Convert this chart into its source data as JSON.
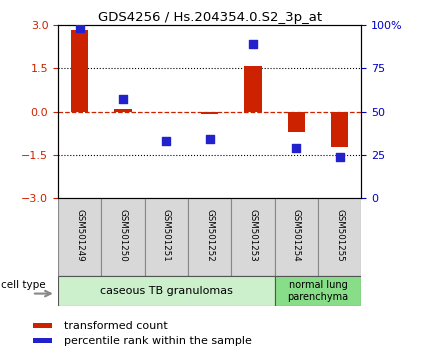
{
  "title": "GDS4256 / Hs.204354.0.S2_3p_at",
  "samples": [
    "GSM501249",
    "GSM501250",
    "GSM501251",
    "GSM501252",
    "GSM501253",
    "GSM501254",
    "GSM501255"
  ],
  "red_bars": [
    2.82,
    0.07,
    -0.03,
    -0.07,
    1.58,
    -0.72,
    -1.22
  ],
  "blue_dots": [
    98.0,
    57.0,
    33.0,
    34.0,
    89.0,
    29.0,
    24.0
  ],
  "ylim_left": [
    -3,
    3
  ],
  "ylim_right": [
    0,
    100
  ],
  "left_yticks": [
    -3,
    -1.5,
    0,
    1.5,
    3
  ],
  "right_yticks": [
    0,
    25,
    50,
    75,
    100
  ],
  "group1_label": "caseous TB granulomas",
  "group2_label": "normal lung\nparenchyma",
  "group1_indices": [
    0,
    1,
    2,
    3,
    4
  ],
  "group2_indices": [
    5,
    6
  ],
  "cell_type_label": "cell type",
  "legend_red": "transformed count",
  "legend_blue": "percentile rank within the sample",
  "group1_color": "#ccf0cc",
  "group2_color": "#88dd88",
  "bar_color": "#cc2200",
  "dot_color": "#2222cc",
  "tick_color_left": "#cc2200",
  "tick_color_right": "#0000cc",
  "sample_box_color": "#d8d8d8",
  "bar_width": 0.4,
  "dot_size": 28
}
